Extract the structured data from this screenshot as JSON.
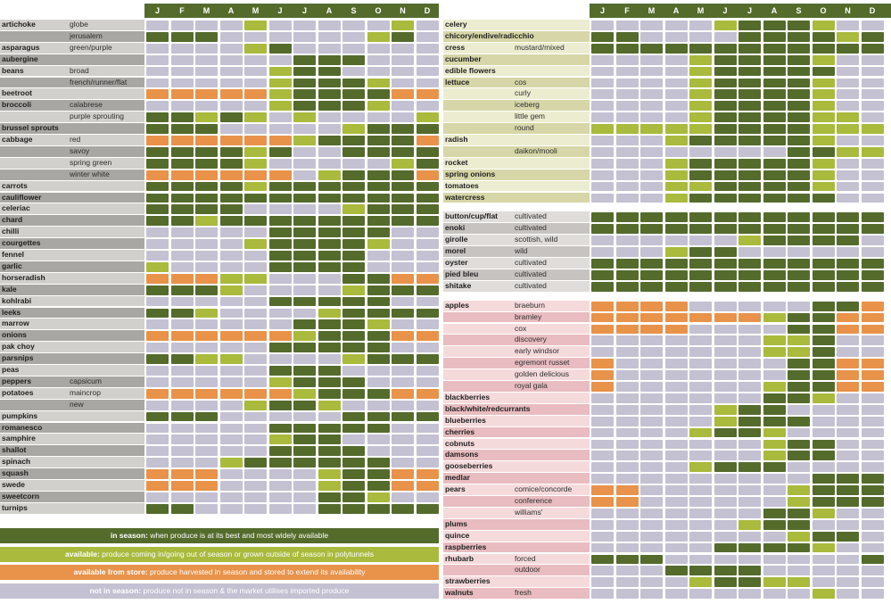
{
  "months": [
    "J",
    "F",
    "M",
    "A",
    "M",
    "J",
    "J",
    "A",
    "S",
    "O",
    "N",
    "D"
  ],
  "colors": {
    "in_season": "#546b2c",
    "available": "#a9ba3c",
    "from_store": "#e8924a",
    "not_in_season": "#c3c1d2"
  },
  "legend": [
    {
      "key": "in_season",
      "term": "in season:",
      "desc": "when produce is at its best and most widely available"
    },
    {
      "key": "available",
      "term": "available:",
      "desc": "produce coming in/going out of season or grown outside of season in polytunnels"
    },
    {
      "key": "from_store",
      "term": "available from store:",
      "desc": "produce harvested in season and stored to extend its availability"
    },
    {
      "key": "not_in_season",
      "term": "not in season:",
      "desc": "produce not in season & the market utilises imported produce"
    }
  ],
  "left_rows": [
    {
      "name": "artichoke",
      "variety": "globe",
      "season": "nnnnannnnnan"
    },
    {
      "name": "",
      "variety": "jerusalem",
      "season": "iiinnnnnnain"
    },
    {
      "name": "asparagus",
      "variety": "green/purple",
      "season": "nnnnainnnnnn"
    },
    {
      "name": "aubergine",
      "variety": "",
      "season": "nnnnnniiinnn"
    },
    {
      "name": "beans",
      "variety": "broad",
      "season": "nnnnnaiinnnn"
    },
    {
      "name": "",
      "variety": "french/runner/flat",
      "season": "nnnnnaiiiann"
    },
    {
      "name": "beetroot",
      "variety": "",
      "season": "sssssaiiiiss"
    },
    {
      "name": "broccoli",
      "variety": "calabrese",
      "season": "nnnnnaiiiann"
    },
    {
      "name": "",
      "variety": "purple sprouting",
      "season": "iiaianannnna"
    },
    {
      "name": "brussel sprouts",
      "variety": "",
      "season": "iiinnnnnaiii"
    },
    {
      "name": "cabbage",
      "variety": "red",
      "season": "ssssssaiiiis"
    },
    {
      "name": "",
      "variety": "savoy",
      "season": "iiiiainniiii"
    },
    {
      "name": "",
      "variety": "spring green",
      "season": "iiiiannnnnai"
    },
    {
      "name": "",
      "variety": "winter white",
      "season": "ssssssnaiiis"
    },
    {
      "name": "carrots",
      "variety": "",
      "season": "iiiiaiiiiiii"
    },
    {
      "name": "cauliflower",
      "variety": "",
      "season": "iiiiiiiiiiii"
    },
    {
      "name": "celeriac",
      "variety": "",
      "season": "iiiinnnnaiii"
    },
    {
      "name": "chard",
      "variety": "",
      "season": "iiaiiiiiiiii"
    },
    {
      "name": "chilli",
      "variety": "",
      "season": "nnnnniiiiinn"
    },
    {
      "name": "courgettes",
      "variety": "",
      "season": "nnnnaiiiiann"
    },
    {
      "name": "fennel",
      "variety": "",
      "season": "nnnnniiiinnn"
    },
    {
      "name": "garlic",
      "variety": "",
      "season": "annnniiiinnn"
    },
    {
      "name": "horseradish",
      "variety": "",
      "season": "sssaannniiss"
    },
    {
      "name": "kale",
      "variety": "",
      "season": "iiiannnnaiii"
    },
    {
      "name": "kohlrabi",
      "variety": "",
      "season": "nnnnniiiiinn"
    },
    {
      "name": "leeks",
      "variety": "",
      "season": "iiannnnaiiii"
    },
    {
      "name": "marrow",
      "variety": "",
      "season": "nnnnnniiiann"
    },
    {
      "name": "onions",
      "variety": "",
      "season": "ssssssaiiiss"
    },
    {
      "name": "pak choy",
      "variety": "",
      "season": "nnnnniiiiinn"
    },
    {
      "name": "parsnips",
      "variety": "",
      "season": "iiaannnnaiii"
    },
    {
      "name": "peas",
      "variety": "",
      "season": "nnnnniiinnnn"
    },
    {
      "name": "peppers",
      "variety": "capsicum",
      "season": "nnnnnaiiinnn"
    },
    {
      "name": "potatoes",
      "variety": "maincrop",
      "season": "ssssssaiiiss"
    },
    {
      "name": "",
      "variety": "new",
      "season": "nnnnaiiannnn"
    },
    {
      "name": "pumpkins",
      "variety": "",
      "season": "iiinnnnniiii"
    },
    {
      "name": "romanesco",
      "variety": "",
      "season": "nnnnniiiiinn"
    },
    {
      "name": "samphire",
      "variety": "",
      "season": "nnnnnaiinnnn"
    },
    {
      "name": "shallot",
      "variety": "",
      "season": "nnnnniiiinnn"
    },
    {
      "name": "spinach",
      "variety": "",
      "season": "nnnaiiiiiinn"
    },
    {
      "name": "squash",
      "variety": "",
      "season": "sssnnnnaiiss"
    },
    {
      "name": "swede",
      "variety": "",
      "season": "sssnnnnaiiss"
    },
    {
      "name": "sweetcorn",
      "variety": "",
      "season": "nnnnnnniiann"
    },
    {
      "name": "turnips",
      "variety": "",
      "season": "iinnnnniiiii"
    }
  ],
  "right_groups": [
    {
      "theme": "veg",
      "rows": [
        {
          "name": "celery",
          "variety": "",
          "season": "nnnnnaiiiann"
        },
        {
          "name": "chicory/endive/radicchio",
          "variety": "",
          "season": "iinnnniiiiai"
        },
        {
          "name": "cress",
          "variety": "mustard/mixed",
          "season": "iiiiiiiiiiii"
        },
        {
          "name": "cucumber",
          "variety": "",
          "season": "nnnnaiiiiann"
        },
        {
          "name": "edible flowers",
          "variety": "",
          "season": "nnnnaiiiiinn"
        },
        {
          "name": "lettuce",
          "variety": "cos",
          "season": "nnnnaiiiiann"
        },
        {
          "name": "",
          "variety": "curly",
          "season": "nnnnaiiiiann"
        },
        {
          "name": "",
          "variety": "iceberg",
          "season": "nnnnaiiiiann"
        },
        {
          "name": "",
          "variety": "little gem",
          "season": "nnnnaiiiiaan"
        },
        {
          "name": "",
          "variety": "round",
          "season": "aaaaaiiiiaaa"
        },
        {
          "name": "radish",
          "variety": "",
          "season": "nnnaiiiiiann"
        },
        {
          "name": "",
          "variety": "daikon/mooli",
          "season": "nnnnnnnniiaa"
        },
        {
          "name": "rocket",
          "variety": "",
          "season": "nnnaiiiiiann"
        },
        {
          "name": "spring onions",
          "variety": "",
          "season": "nnnaiiiiiann"
        },
        {
          "name": "tomatoes",
          "variety": "",
          "season": "nnnaaiiiiann"
        },
        {
          "name": "watercress",
          "variety": "",
          "season": "nnnaiiiiiinn"
        }
      ]
    },
    {
      "theme": "mush",
      "rows": [
        {
          "name": "button/cup/flat",
          "variety": "cultivated",
          "season": "iiiiiiiiiiii"
        },
        {
          "name": "enoki",
          "variety": "cultivated",
          "season": "iiiiiiiiiiii"
        },
        {
          "name": "girolle",
          "variety": "scottish, wild",
          "season": "nnnnnnaiiiin"
        },
        {
          "name": "morel",
          "variety": "wild",
          "season": "nnnaiinnnnnn"
        },
        {
          "name": "oyster",
          "variety": "cultivated",
          "season": "iiiiiiiiiiii"
        },
        {
          "name": "pied bleu",
          "variety": "cultivated",
          "season": "iiiiiiiiiiii"
        },
        {
          "name": "shitake",
          "variety": "cultivated",
          "season": "iiiiiiiiiiii"
        }
      ]
    },
    {
      "theme": "fruit",
      "rows": [
        {
          "name": "apples",
          "variety": "braeburn",
          "season": "ssssnnnnniis"
        },
        {
          "name": "",
          "variety": "bramley",
          "season": "sssssssaiiss"
        },
        {
          "name": "",
          "variety": "cox",
          "season": "ssssnnnniiss"
        },
        {
          "name": "",
          "variety": "discovery",
          "season": "nnnnnnnaainn"
        },
        {
          "name": "",
          "variety": "early windsor",
          "season": "nnnnnnnaainn"
        },
        {
          "name": "",
          "variety": "egremont russet",
          "season": "snnnnnnniiss"
        },
        {
          "name": "",
          "variety": "golden delicious",
          "season": "snnnnnnniiss"
        },
        {
          "name": "",
          "variety": "royal gala",
          "season": "snnnnnnaiiss"
        },
        {
          "name": "blackberries",
          "variety": "",
          "season": "nnnnnnniiann"
        },
        {
          "name": "black/white/redcurrants",
          "variety": "",
          "season": "nnnnnaiinnnn"
        },
        {
          "name": "blueberries",
          "variety": "",
          "season": "nnnnnaiiinnn"
        },
        {
          "name": "cherries",
          "variety": "",
          "season": "nnnnaiiannnn"
        },
        {
          "name": "cobnuts",
          "variety": "",
          "season": "nnnnnnnaiinn"
        },
        {
          "name": "damsons",
          "variety": "",
          "season": "nnnnnnnaiinn"
        },
        {
          "name": "gooseberries",
          "variety": "",
          "season": "nnnnaiiinnnn"
        },
        {
          "name": "medlar",
          "variety": "",
          "season": "nnnnnnnnniii"
        },
        {
          "name": "pears",
          "variety": "comice/concorde",
          "season": "ssnnnnnnaiii"
        },
        {
          "name": "",
          "variety": "conference",
          "season": "ssnnnnnnaiii"
        },
        {
          "name": "",
          "variety": "williams'",
          "season": "nnnnnnniiann"
        },
        {
          "name": "plums",
          "variety": "",
          "season": "nnnnnnaiinnn"
        },
        {
          "name": "quince",
          "variety": "",
          "season": "nnnnnnnnaiin"
        },
        {
          "name": "raspberries",
          "variety": "",
          "season": "nnnnniiiiann"
        },
        {
          "name": "rhubarb",
          "variety": "forced",
          "season": "iiinnnnnnnni"
        },
        {
          "name": "",
          "variety": "outdoor",
          "season": "nnniiiinnnnn"
        },
        {
          "name": "strawberries",
          "variety": "",
          "season": "nnnnaiiaannn"
        },
        {
          "name": "walnuts",
          "variety": "fresh",
          "season": "nnnnnnnnnann"
        }
      ]
    }
  ]
}
